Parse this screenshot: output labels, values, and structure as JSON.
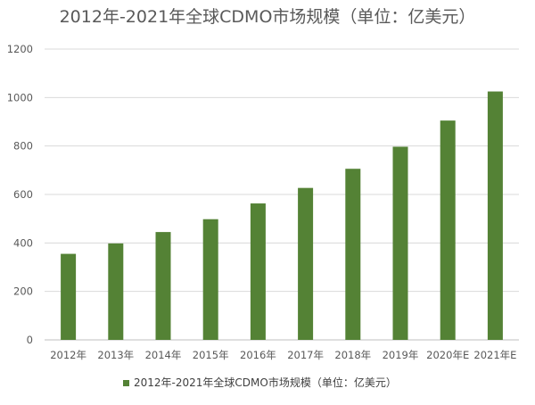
{
  "chart_data": {
    "type": "bar",
    "title": "2012年-2021年全球CDMO市场规模（单位：亿美元）",
    "categories": [
      "2012年",
      "2013年",
      "2014年",
      "2015年",
      "2016年",
      "2017年",
      "2018年",
      "2019年",
      "2020年E",
      "2021年E"
    ],
    "series": [
      {
        "name": "2012年-2021年全球CDMO市场规模（单位：亿美元）",
        "values": [
          355,
          398,
          445,
          498,
          563,
          627,
          706,
          797,
          905,
          1025
        ],
        "color": "#548235"
      }
    ],
    "y_ticks": [
      0,
      200,
      400,
      600,
      800,
      1000,
      1200
    ],
    "ylim": [
      0,
      1200
    ],
    "xlabel": "",
    "ylabel": "",
    "grid": true,
    "legend_position": "bottom"
  }
}
